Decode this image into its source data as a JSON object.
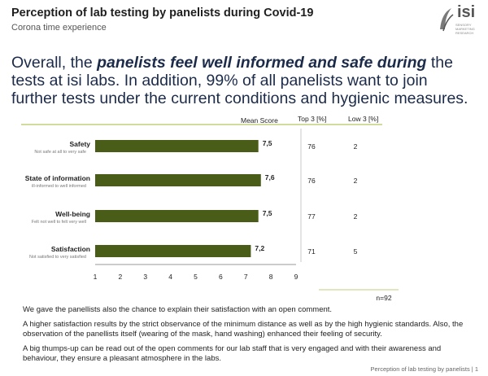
{
  "header": {
    "title": "Perception of lab testing by panelists during Covid-19",
    "subtitle": "Corona time experience",
    "logo_text": "isi",
    "logo_tagline": "SENSORY MARKETING RESEARCH"
  },
  "headline": {
    "part1": "Overall, the ",
    "emphasis": "panelists feel well informed and safe during",
    "part2": " the tests at isi labs. In addition, 99% of all panelists want to join further tests under the current conditions and hygienic measures."
  },
  "columns": {
    "mean": "Mean Score",
    "top3": "Top 3 [%]",
    "low3": "Low 3 [%]"
  },
  "chart_data": {
    "type": "bar",
    "orientation": "horizontal",
    "categories": [
      "Safety",
      "State of information",
      "Well-being",
      "Satisfaction"
    ],
    "scale_labels": [
      "Not safe at all to very safe",
      "ill-informed to well informed",
      "Felt not well to felt very well",
      "Not satisfied to very satisfied"
    ],
    "values": [
      7.5,
      7.6,
      7.5,
      7.2
    ],
    "value_labels": [
      "7,5",
      "7,6",
      "7,5",
      "7,2"
    ],
    "top3": [
      76,
      76,
      77,
      71
    ],
    "low3": [
      2,
      2,
      2,
      5
    ],
    "xlim": [
      1,
      9
    ],
    "xticks": [
      1,
      2,
      3,
      4,
      5,
      6,
      7,
      8,
      9
    ],
    "bar_color": "#4a5d18",
    "n_label": "n=92"
  },
  "body_text": [
    "We gave the panellists also the chance to explain their satisfaction with an open comment.",
    "A higher satisfaction results by the strict observance of the minimum distance as well as by the high hygienic standards. Also, the observation of the panellists itself (wearing of the mask, hand washing) enhanced their feeling of security.",
    "A big thumps-up can be read out of the open comments for our lab staff that is very engaged and with their awareness and behaviour, they ensure a pleasant atmosphere in the labs."
  ],
  "footer": {
    "page_label": "Perception of lab testing by panelists | 1"
  },
  "colors": {
    "accent_line": "#c2cf7c",
    "headline": "#1c2b4a"
  }
}
